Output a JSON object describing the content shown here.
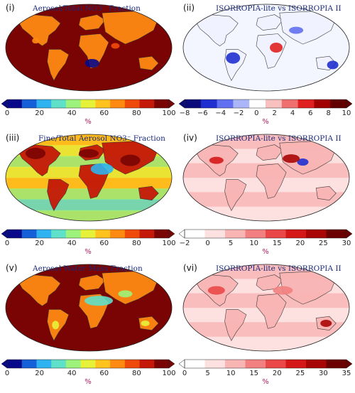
{
  "panels": [
    {
      "label": "(i)",
      "title": "Aerosol/Total NO3⁻ Fraction",
      "palette": "rainbow",
      "ticks": [
        "0",
        "20",
        "40",
        "60",
        "80",
        "100"
      ],
      "unit": "%"
    },
    {
      "label": "(ii)",
      "title": "ISORROPIA-lite vs ISORROPIA II",
      "palette": "diverging",
      "ticks": [
        "−8",
        "−6",
        "−4",
        "−2",
        "0",
        "2",
        "4",
        "6",
        "8",
        "10"
      ],
      "unit": "%"
    },
    {
      "label": "(iii)",
      "title": "Fine/Total Aerosol NO3⁻ Fraction",
      "palette": "rainbow",
      "ticks": [
        "0",
        "20",
        "40",
        "60",
        "80",
        "100"
      ],
      "unit": "%"
    },
    {
      "label": "(iv)",
      "title": "ISORROPIA-lite vs ISORROPIA II",
      "palette": "reds",
      "ticks": [
        "−2",
        "0",
        "5",
        "10",
        "15",
        "20",
        "25",
        "30"
      ],
      "unit": "%"
    },
    {
      "label": "(v)",
      "title": "Aerosol Water Mass Fraction",
      "palette": "rainbow",
      "ticks": [
        "0",
        "20",
        "40",
        "60",
        "80",
        "100"
      ],
      "unit": "%"
    },
    {
      "label": "(vi)",
      "title": "ISORROPIA-lite vs ISORROPIA II",
      "palette": "reds",
      "ticks": [
        "0",
        "5",
        "10",
        "15",
        "20",
        "25",
        "30",
        "35"
      ],
      "unit": "%"
    }
  ],
  "colors": {
    "rainbow": [
      "#08088a",
      "#1560d8",
      "#2fb3f0",
      "#5fe0c8",
      "#9cf27a",
      "#e6f23a",
      "#ffc21e",
      "#ff8a12",
      "#f04a0a",
      "#c41808",
      "#7a0404"
    ],
    "diverging": [
      "#0a0a7a",
      "#2030d0",
      "#6070f0",
      "#aab6f8",
      "#ffffff",
      "#f9c0c0",
      "#f07070",
      "#e02020",
      "#a00000",
      "#600000"
    ],
    "reds": [
      "#ffffff",
      "#fde0e0",
      "#f9b4b4",
      "#f38080",
      "#ea4848",
      "#d41818",
      "#a80606",
      "#6a0000"
    ]
  }
}
